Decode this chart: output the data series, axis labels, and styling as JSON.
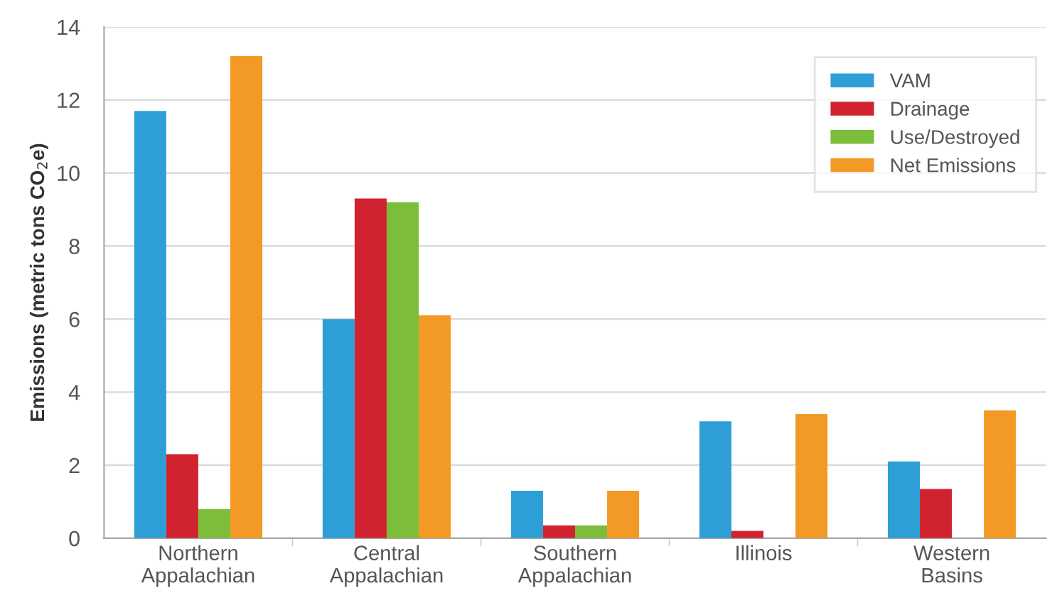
{
  "chart_data": {
    "type": "bar",
    "ylabel": "Emissions (metric tons CO$_{2}$e)",
    "categories": [
      "Northern\nAppalachian",
      "Central\nAppalachian",
      "Southern\nAppalachian",
      "Illinois",
      "Western\nBasins"
    ],
    "series": [
      {
        "name": "VAM",
        "color": "#2e9fd6",
        "values": [
          11.7,
          6.0,
          1.3,
          3.2,
          2.1
        ]
      },
      {
        "name": "Drainage",
        "color": "#d0232f",
        "values": [
          2.3,
          9.3,
          0.35,
          0.2,
          1.35
        ]
      },
      {
        "name": "Use/Destroyed",
        "color": "#7cbd3a",
        "values": [
          0.8,
          9.2,
          0.35,
          null,
          null
        ]
      },
      {
        "name": "Net Emissions",
        "color": "#f39a26",
        "values": [
          13.2,
          6.1,
          1.3,
          3.4,
          3.5
        ]
      }
    ],
    "ylim": [
      0,
      14
    ],
    "yticks": [
      0,
      2,
      4,
      6,
      8,
      10,
      12,
      14
    ],
    "grid": "y",
    "legend": "top right"
  }
}
